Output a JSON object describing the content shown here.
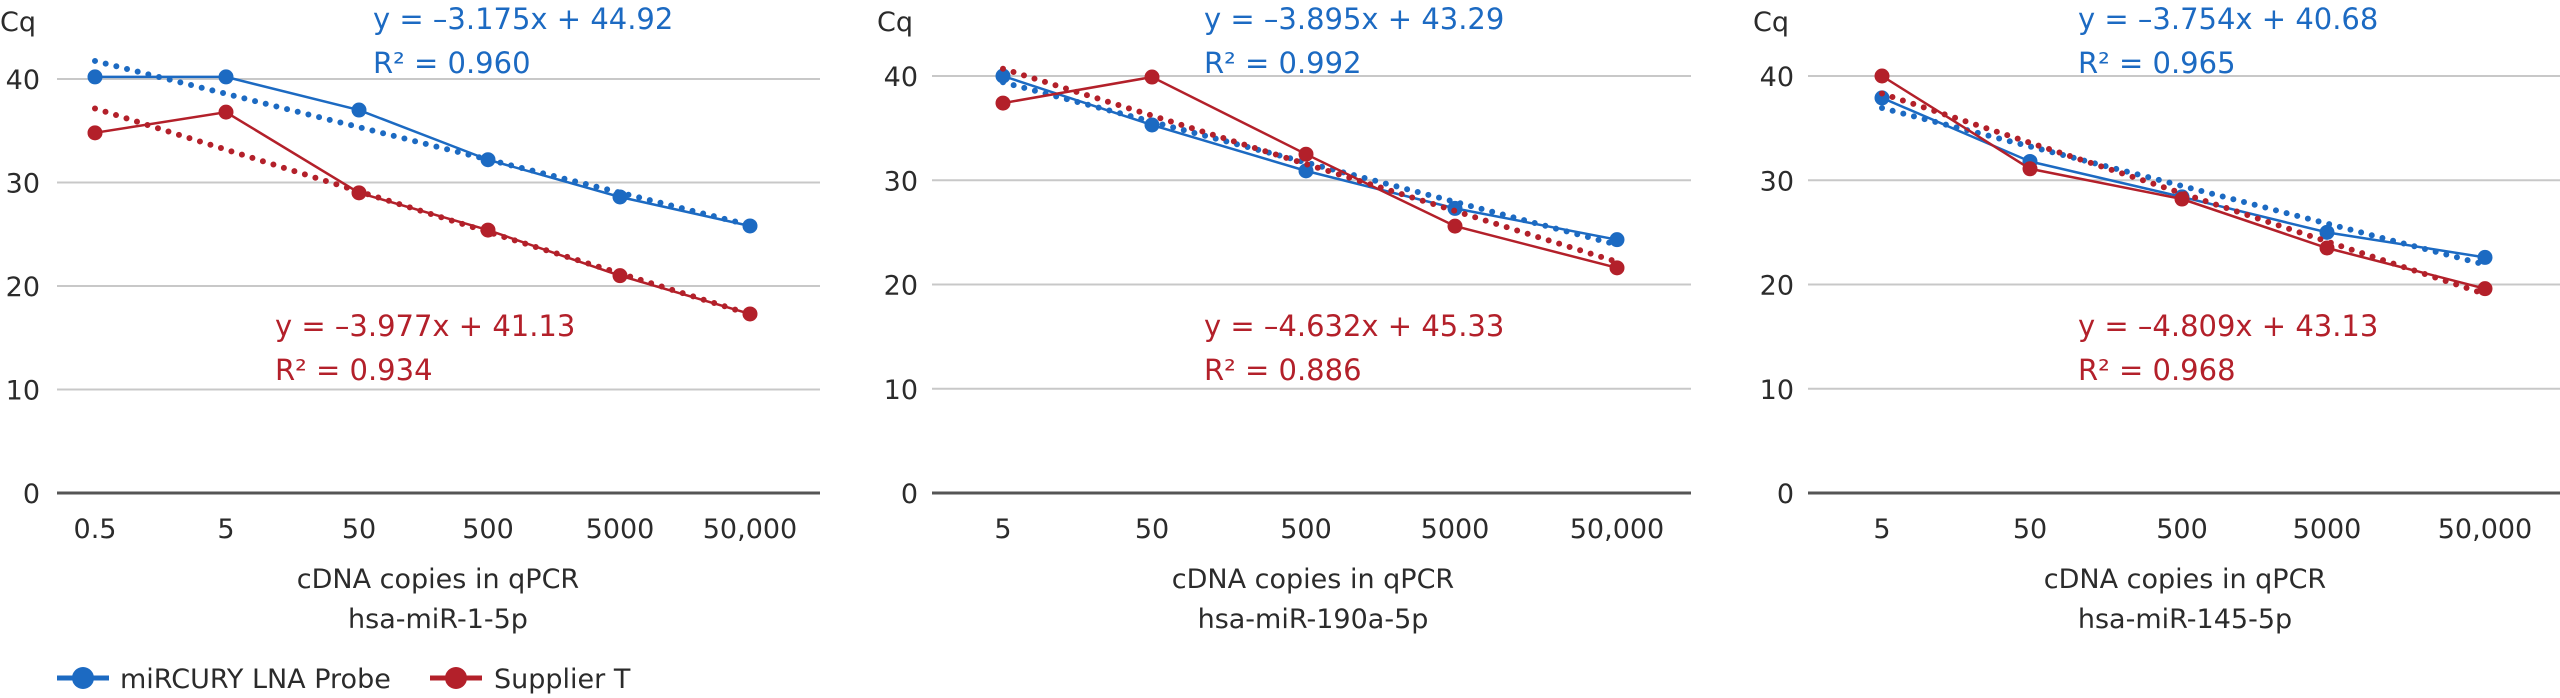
{
  "colors": {
    "miRCURY": "#1c6ac2",
    "supplier": "#b3202a",
    "grid": "#c8c8c8",
    "baseline": "#555555",
    "text": "#2b2b2b"
  },
  "legend": {
    "placement": "bottom-left",
    "items": [
      {
        "label": "miRCURY LNA Probe",
        "series_key": "miRCURY",
        "icon": "line-with-circle-marker"
      },
      {
        "label": "Supplier T",
        "series_key": "supplier",
        "icon": "line-with-circle-marker"
      }
    ]
  },
  "chart_data": [
    {
      "type": "line",
      "title": "",
      "ylabel": "Cq",
      "xlabel": "cDNA copies in qPCR",
      "subtitle": "hsa-miR-1-5p",
      "ylim": [
        0,
        40
      ],
      "yticks": [
        "0",
        "10",
        "20",
        "30",
        "40"
      ],
      "categories": [
        "0.5",
        "5",
        "50",
        "500",
        "5000",
        "50,000"
      ],
      "grid": true,
      "series": [
        {
          "name": "miRCURY LNA Probe",
          "key": "miRCURY",
          "values": [
            40.2,
            40.2,
            37.0,
            32.2,
            28.6,
            25.8
          ],
          "trendline": {
            "slope": -3.175,
            "intercept": 44.92,
            "r2": 0.96,
            "equation": "y = –3.175x + 44.92",
            "r2_label": "R² = 0.960"
          }
        },
        {
          "name": "Supplier T",
          "key": "supplier",
          "values": [
            34.8,
            36.8,
            29.0,
            25.4,
            21.0,
            17.3
          ],
          "trendline": {
            "slope": -3.977,
            "intercept": 41.13,
            "r2": 0.934,
            "equation": "y = –3.977x + 41.13",
            "r2_label": "R² = 0.934"
          }
        }
      ]
    },
    {
      "type": "line",
      "title": "",
      "ylabel": "Cq",
      "xlabel": "cDNA copies in qPCR",
      "subtitle": "hsa-miR-190a-5p",
      "ylim": [
        0,
        40
      ],
      "yticks": [
        "0",
        "10",
        "20",
        "30",
        "40"
      ],
      "categories": [
        "5",
        "50",
        "500",
        "5000",
        "50,000"
      ],
      "grid": true,
      "series": [
        {
          "name": "miRCURY LNA Probe",
          "key": "miRCURY",
          "values": [
            40.0,
            35.3,
            30.9,
            27.3,
            24.3
          ],
          "trendline": {
            "slope": -3.895,
            "intercept": 43.29,
            "r2": 0.992,
            "equation": "y = –3.895x + 43.29",
            "r2_label": "R² = 0.992"
          }
        },
        {
          "name": "Supplier T",
          "key": "supplier",
          "values": [
            37.4,
            39.9,
            32.5,
            25.6,
            21.6
          ],
          "trendline": {
            "slope": -4.632,
            "intercept": 45.33,
            "r2": 0.886,
            "equation": "y = –4.632x + 45.33",
            "r2_label": "R² = 0.886"
          }
        }
      ]
    },
    {
      "type": "line",
      "title": "",
      "ylabel": "Cq",
      "xlabel": "cDNA copies in qPCR",
      "subtitle": "hsa-miR-145-5p",
      "ylim": [
        0,
        40
      ],
      "yticks": [
        "0",
        "10",
        "20",
        "30",
        "40"
      ],
      "categories": [
        "5",
        "50",
        "500",
        "5000",
        "50,000"
      ],
      "grid": true,
      "series": [
        {
          "name": "miRCURY LNA Probe",
          "key": "miRCURY",
          "values": [
            37.9,
            31.8,
            28.4,
            25.0,
            22.6
          ],
          "trendline": {
            "slope": -3.754,
            "intercept": 40.68,
            "r2": 0.965,
            "equation": "y = –3.754x + 40.68",
            "r2_label": "R² = 0.965"
          }
        },
        {
          "name": "Supplier T",
          "key": "supplier",
          "values": [
            40.0,
            31.1,
            28.2,
            23.5,
            19.6
          ],
          "trendline": {
            "slope": -4.809,
            "intercept": 43.13,
            "r2": 0.968,
            "equation": "y = –4.809x + 43.13",
            "r2_label": "R² = 0.968"
          }
        }
      ]
    }
  ]
}
